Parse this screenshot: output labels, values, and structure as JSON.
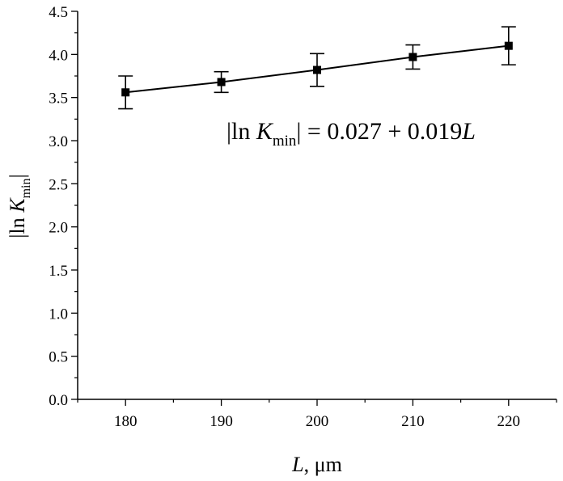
{
  "chart_data": {
    "type": "scatter",
    "x": [
      180,
      190,
      200,
      210,
      220
    ],
    "y": [
      3.56,
      3.68,
      3.82,
      3.97,
      4.1
    ],
    "y_err": [
      0.19,
      0.12,
      0.19,
      0.14,
      0.22
    ],
    "fit": {
      "intercept": 0.027,
      "slope": 0.019
    },
    "equation": {
      "lhs_open": "|ln ",
      "var": "K",
      "sub": "min",
      "rhs": "| = 0.027 + 0.019",
      "rhs_var": "L"
    },
    "xlabel": {
      "var": "L",
      "unit": ", μm"
    },
    "ylabel": {
      "prefix": "|ln ",
      "var": "K",
      "sub": "min",
      "suffix": "|"
    },
    "xlim": [
      175,
      225
    ],
    "ylim": [
      0,
      4.5
    ],
    "xticks": [
      "180",
      "190",
      "200",
      "210",
      "220"
    ],
    "xtick_values": [
      180,
      190,
      200,
      210,
      220
    ],
    "yticks": [
      "0.0",
      "0.5",
      "1.0",
      "1.5",
      "2.0",
      "2.5",
      "3.0",
      "3.5",
      "4.0",
      "4.5"
    ],
    "ytick_values": [
      0,
      0.5,
      1.0,
      1.5,
      2.0,
      2.5,
      3.0,
      3.5,
      4.0,
      4.5
    ],
    "grid": false,
    "marker": "square",
    "colors": {
      "line": "#000000",
      "marker": "#000000"
    }
  }
}
